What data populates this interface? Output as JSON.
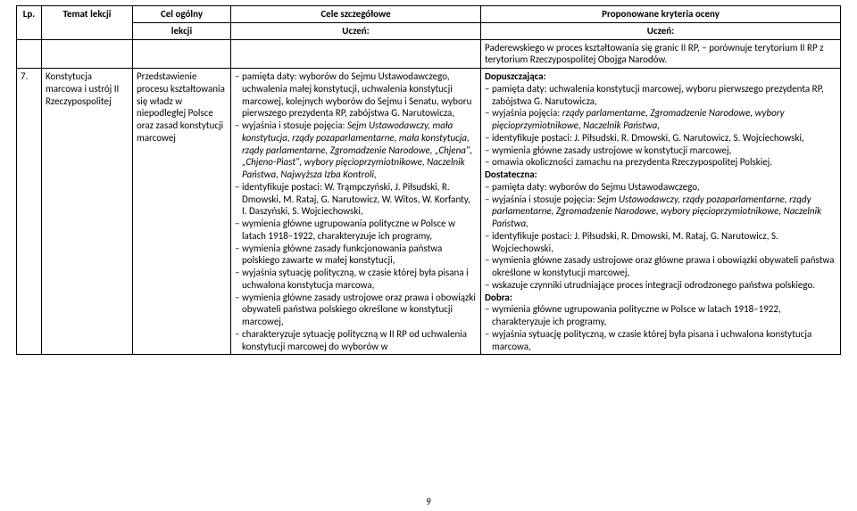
{
  "header": {
    "lp": "Lp.",
    "temat": "Temat lekcji",
    "cel_ogolny_top": "Cel ogólny",
    "cel_ogolny_bottom": "lekcji",
    "cele_top": "Cele szczegółowe",
    "cele_bottom": "Uczeń:",
    "kryteria_top": "Proponowane kryteria oceny",
    "kryteria_bottom": "Uczeń:"
  },
  "row_prev": {
    "kryteria": "Paderewskiego w proces kształtowania się granic II RP,\n– porównuje terytorium II RP z terytorium Rzeczypospolitej Obojga Narodów."
  },
  "row7": {
    "lp": "7.",
    "temat": "Konstytucja marcowa i ustrój II Rzeczypospolitej",
    "cel": "Przedstawienie procesu kształtowania się władz w niepodległej Polsce oraz zasad konstytucji marcowej",
    "cele_lines": [
      "– pamięta daty: wyborów do Sejmu Ustawodawczego, uchwalenia małej konstytucji, uchwalenia konstytucji marcowej, kolejnych wyborów do Sejmu i Senatu, wyboru pierwszego prezydenta RP, zabójstwa G. Narutowicza,",
      "– wyjaśnia i stosuje pojęcia: <i>Sejm Ustawodawczy, mała konstytucja, rządy pozaparlamentarne, mała konstytucja, rządy parlamentarne, Zgromadzenie Narodowe, „Chjena\", „Chjeno-Piast\", wybory pięcioprzymiotnikowe, Naczelnik Państwa, Najwyższa Izba Kontroli,</i>",
      "– identyfikuje postaci: W. Trąmpczyński, J. Piłsudski, R. Dmowski, M. Rataj, G. Narutowicz, W. Witos, W. Korfanty, I. Daszyński, S. Wojciechowski,",
      "– wymienia główne ugrupowania polityczne w Polsce w latach 1918–1922, charakteryzuje ich programy,",
      "– wymienia główne zasady funkcjonowania państwa polskiego zawarte w małej konstytucji,",
      "– wyjaśnia sytuację polityczną, w czasie której była pisana i uchwalona konstytucja marcowa,",
      "– wymienia główne zasady ustrojowe oraz prawa i obowiązki obywateli państwa polskiego określone w konstytucji marcowej,",
      "– charakteryzuje sytuację polityczną w II RP od uchwalenia konstytucji marcowej do wyborów w"
    ],
    "kryteria_lines": [
      "<b>Dopuszczająca:</b>",
      "– pamięta daty: uchwalenia konstytucji marcowej, wyboru pierwszego prezydenta RP, zabójstwa G. Narutowicza,",
      "– wyjaśnia pojęcia: <i>rządy parlamentarne, Zgromadzenie Narodowe, wybory pięcioprzymiotnikowe, Naczelnik Państwa,</i>",
      "– identyfikuje postaci: J. Piłsudski, R. Dmowski, G. Narutowicz, S. Wojciechowski,",
      "– wymienia główne zasady ustrojowe w konstytucji marcowej,",
      "– omawia okoliczności zamachu na prezydenta Rzeczypospolitej Polskiej.",
      "<b>Dostateczna:</b>",
      "– pamięta daty: wyborów do Sejmu Ustawodawczego,",
      "– wyjaśnia i stosuje pojęcia: <i>Sejm Ustawodawczy, rządy pozaparlamentarne, rządy parlamentarne, Zgromadzenie Narodowe, wybory pięcioprzymiotnikowe, Naczelnik Państwa,</i>",
      "– identyfikuje postaci: J. Piłsudski, R. Dmowski, M. Rataj, G. Narutowicz, S. Wojciechowski,",
      "– wymienia główne zasady ustrojowe oraz główne prawa i obowiązki obywateli państwa określone w konstytucji marcowej,",
      "– wskazuje czynniki utrudniające proces integracji odrodzonego państwa polskiego.",
      "<b>Dobra:</b>",
      "– wymienia główne ugrupowania polityczne w Polsce w latach 1918–1922, charakteryzuje ich programy,",
      "– wyjaśnia sytuację polityczną, w czasie której była pisana i uchwalona konstytucja marcowa,"
    ]
  },
  "page_number": "9"
}
